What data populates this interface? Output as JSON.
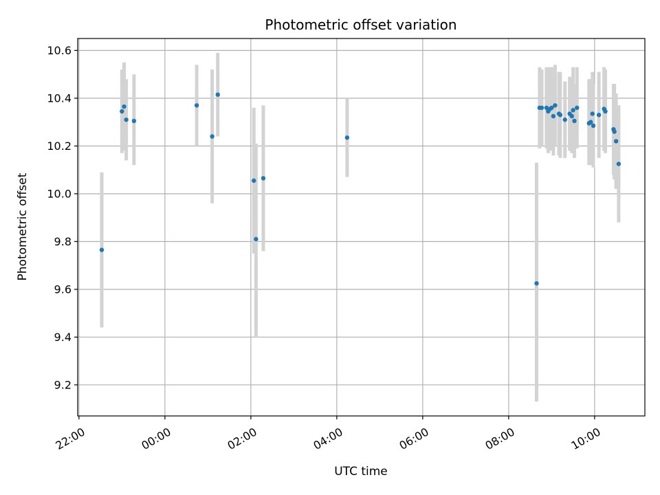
{
  "chart_data": {
    "type": "scatter",
    "title": "Photometric offset variation",
    "xlabel": "UTC time",
    "ylabel": "Photometric offset",
    "x_unit": "hours from 00:00 UTC (negative = previous day)",
    "xlim": [
      -2.03,
      11.17
    ],
    "ylim": [
      9.07,
      10.65
    ],
    "x_ticks": [
      {
        "value": -2,
        "label": "22:00"
      },
      {
        "value": 0,
        "label": "00:00"
      },
      {
        "value": 2,
        "label": "02:00"
      },
      {
        "value": 4,
        "label": "04:00"
      },
      {
        "value": 6,
        "label": "06:00"
      },
      {
        "value": 8,
        "label": "08:00"
      },
      {
        "value": 10,
        "label": "10:00"
      }
    ],
    "y_ticks": [
      {
        "value": 9.2,
        "label": "9.2"
      },
      {
        "value": 9.4,
        "label": "9.4"
      },
      {
        "value": 9.6,
        "label": "9.6"
      },
      {
        "value": 9.8,
        "label": "9.8"
      },
      {
        "value": 10.0,
        "label": "10.0"
      },
      {
        "value": 10.2,
        "label": "10.2"
      },
      {
        "value": 10.4,
        "label": "10.4"
      },
      {
        "value": 10.6,
        "label": "10.6"
      }
    ],
    "grid": true,
    "point_color": "#1f77b4",
    "errorbar_color": "#d3d3d3",
    "points": [
      {
        "x": -1.47,
        "y": 9.765,
        "ylo": 9.44,
        "yhi": 10.09
      },
      {
        "x": -1.0,
        "y": 10.345,
        "ylo": 10.17,
        "yhi": 10.52
      },
      {
        "x": -0.95,
        "y": 10.365,
        "ylo": 10.18,
        "yhi": 10.55
      },
      {
        "x": -0.9,
        "y": 10.31,
        "ylo": 10.14,
        "yhi": 10.48
      },
      {
        "x": -0.72,
        "y": 10.305,
        "ylo": 10.12,
        "yhi": 10.5
      },
      {
        "x": 0.74,
        "y": 10.37,
        "ylo": 10.2,
        "yhi": 10.54
      },
      {
        "x": 1.1,
        "y": 10.24,
        "ylo": 9.96,
        "yhi": 10.52
      },
      {
        "x": 1.23,
        "y": 10.415,
        "ylo": 10.24,
        "yhi": 10.59
      },
      {
        "x": 2.07,
        "y": 10.055,
        "ylo": 9.75,
        "yhi": 10.36
      },
      {
        "x": 2.12,
        "y": 9.81,
        "ylo": 9.4,
        "yhi": 10.21
      },
      {
        "x": 2.29,
        "y": 10.065,
        "ylo": 9.76,
        "yhi": 10.37
      },
      {
        "x": 4.24,
        "y": 10.235,
        "ylo": 10.07,
        "yhi": 10.4
      },
      {
        "x": 8.65,
        "y": 9.625,
        "ylo": 9.13,
        "yhi": 10.13
      },
      {
        "x": 8.72,
        "y": 10.36,
        "ylo": 10.19,
        "yhi": 10.53
      },
      {
        "x": 8.77,
        "y": 10.36,
        "ylo": 10.2,
        "yhi": 10.52
      },
      {
        "x": 8.88,
        "y": 10.36,
        "ylo": 10.19,
        "yhi": 10.53
      },
      {
        "x": 8.92,
        "y": 10.345,
        "ylo": 10.17,
        "yhi": 10.52
      },
      {
        "x": 8.96,
        "y": 10.355,
        "ylo": 10.18,
        "yhi": 10.53
      },
      {
        "x": 9.0,
        "y": 10.36,
        "ylo": 10.19,
        "yhi": 10.53
      },
      {
        "x": 9.04,
        "y": 10.325,
        "ylo": 10.16,
        "yhi": 10.49
      },
      {
        "x": 9.08,
        "y": 10.37,
        "ylo": 10.2,
        "yhi": 10.54
      },
      {
        "x": 9.17,
        "y": 10.335,
        "ylo": 10.16,
        "yhi": 10.51
      },
      {
        "x": 9.2,
        "y": 10.33,
        "ylo": 10.15,
        "yhi": 10.51
      },
      {
        "x": 9.31,
        "y": 10.31,
        "ylo": 10.15,
        "yhi": 10.47
      },
      {
        "x": 9.42,
        "y": 10.335,
        "ylo": 10.18,
        "yhi": 10.49
      },
      {
        "x": 9.47,
        "y": 10.325,
        "ylo": 10.17,
        "yhi": 10.48
      },
      {
        "x": 9.5,
        "y": 10.35,
        "ylo": 10.17,
        "yhi": 10.53
      },
      {
        "x": 9.53,
        "y": 10.305,
        "ylo": 10.15,
        "yhi": 10.46
      },
      {
        "x": 9.59,
        "y": 10.36,
        "ylo": 10.19,
        "yhi": 10.53
      },
      {
        "x": 9.87,
        "y": 10.295,
        "ylo": 10.12,
        "yhi": 10.48
      },
      {
        "x": 9.91,
        "y": 10.3,
        "ylo": 10.12,
        "yhi": 10.48
      },
      {
        "x": 9.95,
        "y": 10.335,
        "ylo": 10.16,
        "yhi": 10.51
      },
      {
        "x": 9.97,
        "y": 10.285,
        "ylo": 10.11,
        "yhi": 10.46
      },
      {
        "x": 10.1,
        "y": 10.33,
        "ylo": 10.15,
        "yhi": 10.51
      },
      {
        "x": 10.22,
        "y": 10.355,
        "ylo": 10.18,
        "yhi": 10.53
      },
      {
        "x": 10.25,
        "y": 10.345,
        "ylo": 10.17,
        "yhi": 10.52
      },
      {
        "x": 10.44,
        "y": 10.27,
        "ylo": 10.08,
        "yhi": 10.46
      },
      {
        "x": 10.46,
        "y": 10.26,
        "ylo": 10.06,
        "yhi": 10.46
      },
      {
        "x": 10.5,
        "y": 10.22,
        "ylo": 10.02,
        "yhi": 10.42
      },
      {
        "x": 10.56,
        "y": 10.125,
        "ylo": 9.88,
        "yhi": 10.37
      }
    ]
  }
}
